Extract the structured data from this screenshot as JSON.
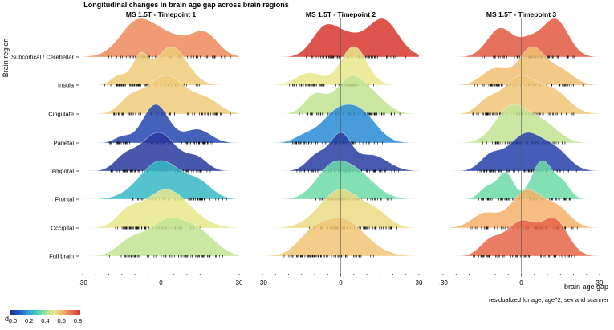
{
  "chart_data": {
    "type": "ridgeline",
    "title": "Longitudinal changes in brain age gap across brain regions",
    "ylabel": "Brain region",
    "xlabel": "brain age gap",
    "xlabel_sub": "residualized for age, age^2, sex and scanner",
    "xlim": [
      -30,
      30
    ],
    "xticks": [
      -30,
      0,
      30
    ],
    "reference_line": 0,
    "regions": [
      "Subcortical / Cerebellar",
      "Insula",
      "Cingulate",
      "Parietal",
      "Temporal",
      "Frontal",
      "Occipital",
      "Full brain"
    ],
    "colorbar": {
      "label": "d",
      "ticks": [
        "0.0",
        "0.2",
        "0.4",
        "0.6",
        "0.8"
      ],
      "range": [
        0,
        0.8
      ],
      "colormap": [
        "#2b2f8f",
        "#1e5ccf",
        "#2e9fd6",
        "#3fd1b6",
        "#9be29a",
        "#e9e689",
        "#f4b06a",
        "#e9714f",
        "#d7362e"
      ]
    },
    "panels": [
      {
        "title": "MS 1.5T - Timepoint 1",
        "ridges": [
          {
            "region": "Subcortical / Cerebellar",
            "d": 0.66,
            "peaks": [
              [
                -10,
                6,
                0.78
              ],
              [
                0,
                10,
                0.85
              ],
              [
                17,
                5,
                0.7
              ]
            ]
          },
          {
            "region": "Insula",
            "d": 0.55,
            "peaks": [
              [
                -8,
                3,
                0.7
              ],
              [
                4,
                6,
                1.0
              ],
              [
                -16,
                3,
                0.25
              ]
            ]
          },
          {
            "region": "Cingulate",
            "d": 0.55,
            "peaks": [
              [
                2,
                8,
                1.0
              ],
              [
                -12,
                4,
                0.3
              ],
              [
                18,
                5,
                0.3
              ]
            ]
          },
          {
            "region": "Parietal",
            "d": 0.05,
            "peaks": [
              [
                -2,
                5,
                1.0
              ],
              [
                14,
                5,
                0.35
              ],
              [
                -15,
                3,
                0.15
              ]
            ]
          },
          {
            "region": "Temporal",
            "d": 0.02,
            "peaks": [
              [
                -1,
                7,
                1.0
              ],
              [
                -14,
                4,
                0.3
              ],
              [
                14,
                4,
                0.3
              ]
            ]
          },
          {
            "region": "Frontal",
            "d": 0.25,
            "peaks": [
              [
                0,
                8,
                1.0
              ],
              [
                15,
                5,
                0.35
              ]
            ]
          },
          {
            "region": "Occipital",
            "d": 0.5,
            "peaks": [
              [
                2,
                9,
                1.0
              ],
              [
                -13,
                4,
                0.3
              ]
            ]
          },
          {
            "region": "Full brain",
            "d": 0.45,
            "peaks": [
              [
                3,
                8,
                1.0
              ],
              [
                16,
                6,
                0.45
              ],
              [
                -12,
                5,
                0.35
              ]
            ]
          }
        ]
      },
      {
        "title": "MS 1.5T - Timepoint 2",
        "ridges": [
          {
            "region": "Subcortical / Cerebellar",
            "d": 0.82,
            "peaks": [
              [
                -6,
                5,
                0.8
              ],
              [
                16,
                6,
                1.05
              ],
              [
                3,
                5,
                0.45
              ]
            ]
          },
          {
            "region": "Insula",
            "d": 0.5,
            "peaks": [
              [
                5,
                5,
                1.1
              ],
              [
                -12,
                5,
                0.35
              ]
            ]
          },
          {
            "region": "Cingulate",
            "d": 0.45,
            "peaks": [
              [
                4,
                6,
                1.0
              ],
              [
                -10,
                4,
                0.5
              ],
              [
                14,
                5,
                0.3
              ]
            ]
          },
          {
            "region": "Parietal",
            "d": 0.17,
            "peaks": [
              [
                -2,
                6,
                0.9
              ],
              [
                8,
                6,
                0.9
              ],
              [
                -14,
                4,
                0.2
              ]
            ]
          },
          {
            "region": "Temporal",
            "d": 0.03,
            "peaks": [
              [
                0,
                4,
                1.0
              ],
              [
                -9,
                4,
                0.45
              ],
              [
                12,
                6,
                0.45
              ]
            ]
          },
          {
            "region": "Frontal",
            "d": 0.35,
            "peaks": [
              [
                -4,
                6,
                0.9
              ],
              [
                6,
                7,
                0.85
              ]
            ]
          },
          {
            "region": "Occipital",
            "d": 0.52,
            "peaks": [
              [
                0,
                8,
                1.0
              ],
              [
                14,
                5,
                0.3
              ]
            ]
          },
          {
            "region": "Full brain",
            "d": 0.56,
            "peaks": [
              [
                0,
                9,
                1.0
              ],
              [
                -12,
                5,
                0.3
              ]
            ]
          }
        ]
      },
      {
        "title": "MS 1.5T - Timepoint 3",
        "ridges": [
          {
            "region": "Subcortical / Cerebellar",
            "d": 0.74,
            "peaks": [
              [
                -8,
                5,
                0.8
              ],
              [
                13,
                5,
                1.05
              ],
              [
                3,
                4,
                0.4
              ]
            ]
          },
          {
            "region": "Insula",
            "d": 0.57,
            "peaks": [
              [
                4,
                5,
                1.0
              ],
              [
                -10,
                5,
                0.45
              ],
              [
                15,
                5,
                0.4
              ]
            ]
          },
          {
            "region": "Cingulate",
            "d": 0.56,
            "peaks": [
              [
                -1,
                6,
                1.0
              ],
              [
                12,
                6,
                0.65
              ],
              [
                -13,
                4,
                0.35
              ]
            ]
          },
          {
            "region": "Parietal",
            "d": 0.45,
            "peaks": [
              [
                -4,
                6,
                0.9
              ],
              [
                8,
                6,
                0.5
              ]
            ]
          },
          {
            "region": "Temporal",
            "d": 0.04,
            "peaks": [
              [
                2,
                7,
                1.0
              ],
              [
                -12,
                4,
                0.35
              ],
              [
                14,
                5,
                0.4
              ]
            ]
          },
          {
            "region": "Frontal",
            "d": 0.35,
            "peaks": [
              [
                -6,
                3,
                0.55
              ],
              [
                8,
                4,
                0.8
              ],
              [
                -13,
                3,
                0.25
              ],
              [
                16,
                3,
                0.3
              ]
            ]
          },
          {
            "region": "Occipital",
            "d": 0.6,
            "peaks": [
              [
                2,
                6,
                0.9
              ],
              [
                -14,
                5,
                0.35
              ],
              [
                14,
                5,
                0.45
              ]
            ]
          },
          {
            "region": "Full brain",
            "d": 0.72,
            "peaks": [
              [
                0,
                6,
                0.75
              ],
              [
                13,
                5,
                0.75
              ],
              [
                -12,
                4,
                0.3
              ]
            ]
          }
        ]
      }
    ]
  }
}
